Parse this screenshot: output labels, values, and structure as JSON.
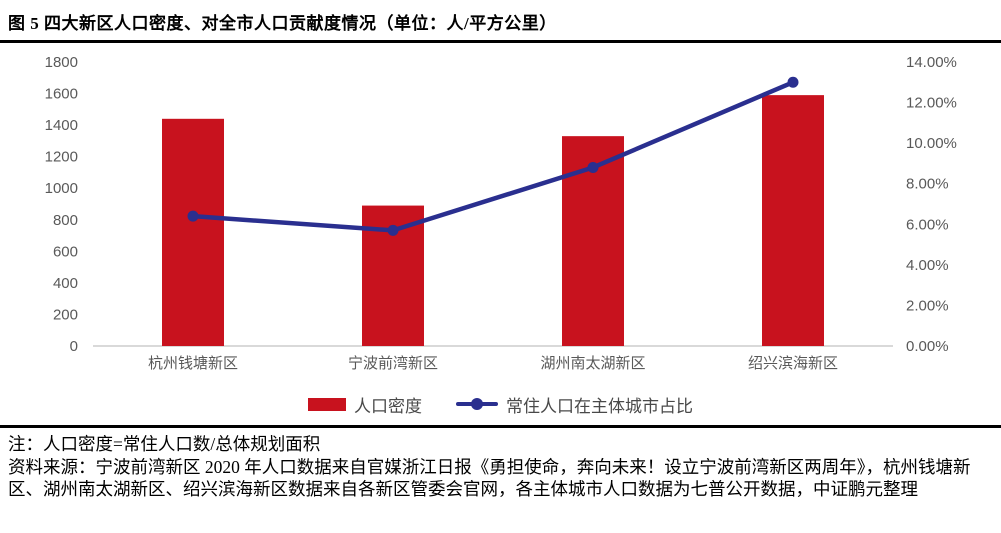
{
  "title": "图 5 四大新区人口密度、对全市人口贡献度情况（单位：人/平方公里）",
  "chart_data": {
    "type": "bar+line combo",
    "categories": [
      "杭州钱塘新区",
      "宁波前湾新区",
      "湖州南太湖新区",
      "绍兴滨海新区"
    ],
    "series": [
      {
        "name": "人口密度",
        "type": "bar",
        "axis": "left",
        "color": "#C8121E",
        "values": [
          1440,
          890,
          1330,
          1590
        ]
      },
      {
        "name": "常住人口在主体城市占比",
        "type": "line",
        "axis": "right",
        "color": "#2A2F8F",
        "unit": "%",
        "values": [
          6.4,
          5.7,
          8.8,
          13.0
        ]
      }
    ],
    "left_axis": {
      "min": 0,
      "max": 1800,
      "step": 200,
      "ticks": [
        "0",
        "200",
        "400",
        "600",
        "800",
        "1000",
        "1200",
        "1400",
        "1600",
        "1800"
      ]
    },
    "right_axis": {
      "min": 0,
      "max": 14,
      "step": 2,
      "ticks": [
        "0.00%",
        "2.00%",
        "4.00%",
        "6.00%",
        "8.00%",
        "10.00%",
        "12.00%",
        "14.00%"
      ]
    },
    "grid": false,
    "legend_position": "bottom",
    "axis_line_color": "#D9D9D9"
  },
  "notes": {
    "note": "注：人口密度=常住人口数/总体规划面积",
    "source": "资料来源：宁波前湾新区 2020 年人口数据来自官媒浙江日报《勇担使命，奔向未来！设立宁波前湾新区两周年》，杭州钱塘新区、湖州南太湖新区、绍兴滨海新区数据来自各新区管委会官网，各主体城市人口数据为七普公开数据，中证鹏元整理"
  }
}
